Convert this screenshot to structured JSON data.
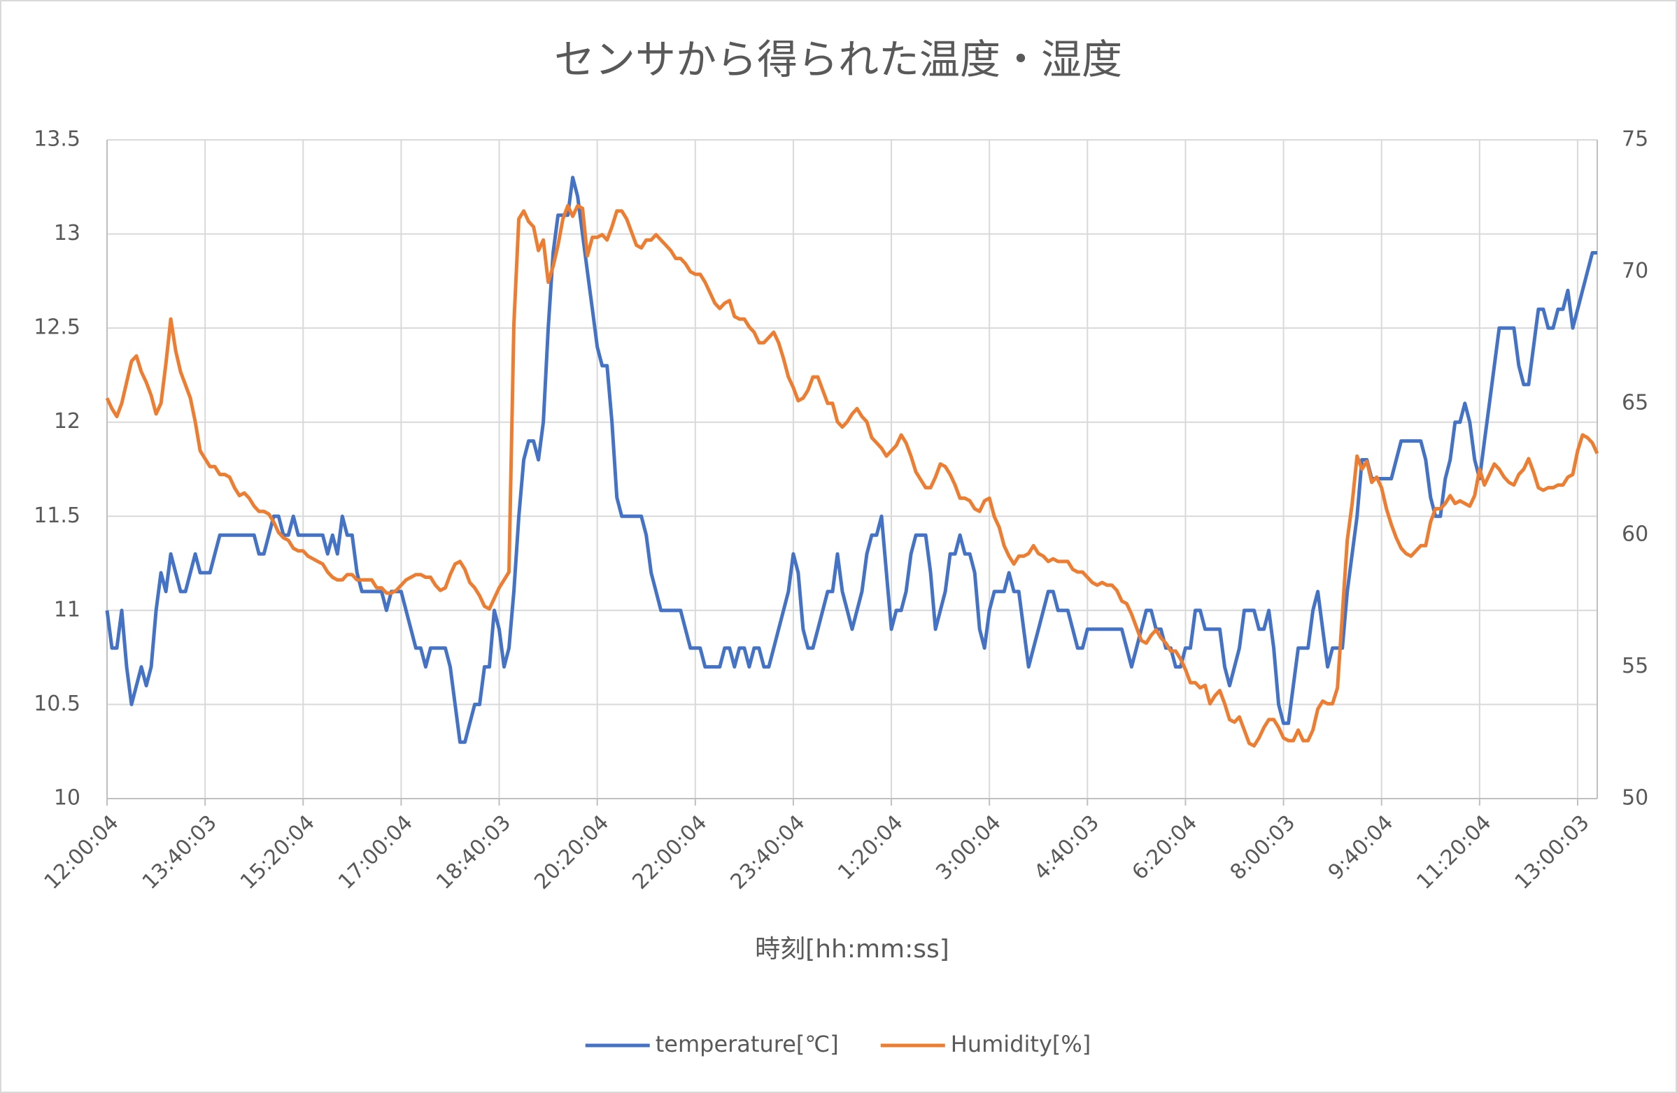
{
  "chart_data": {
    "type": "line",
    "title": "センサから得られた温度・湿度",
    "xlabel": "時刻[hh:mm:ss]",
    "categories": [
      "12:00:04",
      null,
      null,
      null,
      null,
      null,
      null,
      null,
      null,
      null,
      null,
      null,
      null,
      null,
      null,
      null,
      null,
      null,
      null,
      null,
      "13:40:03",
      null,
      null,
      null,
      null,
      null,
      null,
      null,
      null,
      null,
      null,
      null,
      null,
      null,
      null,
      null,
      null,
      null,
      null,
      null,
      "15:20:04",
      null,
      null,
      null,
      null,
      null,
      null,
      null,
      null,
      null,
      null,
      null,
      null,
      null,
      null,
      null,
      null,
      null,
      null,
      null,
      "17:00:04",
      null,
      null,
      null,
      null,
      null,
      null,
      null,
      null,
      null,
      null,
      null,
      null,
      null,
      null,
      null,
      null,
      null,
      null,
      null,
      "18:40:03",
      null,
      null,
      null,
      null,
      null,
      null,
      null,
      null,
      null,
      null,
      null,
      null,
      null,
      null,
      null,
      null,
      null,
      null,
      null,
      "20:20:04",
      null,
      null,
      null,
      null,
      null,
      null,
      null,
      null,
      null,
      null,
      null,
      null,
      null,
      null,
      null,
      null,
      null,
      null,
      null,
      "22:00:04",
      null,
      null,
      null,
      null,
      null,
      null,
      null,
      null,
      null,
      null,
      null,
      null,
      null,
      null,
      null,
      null,
      null,
      null,
      null,
      "23:40:04",
      null,
      null,
      null,
      null,
      null,
      null,
      null,
      null,
      null,
      null,
      null,
      null,
      null,
      null,
      null,
      null,
      null,
      null,
      null,
      "1:20:04",
      null,
      null,
      null,
      null,
      null,
      null,
      null,
      null,
      null,
      null,
      null,
      null,
      null,
      null,
      null,
      null,
      null,
      null,
      null,
      "3:00:04",
      null,
      null,
      null,
      null,
      null,
      null,
      null,
      null,
      null,
      null,
      null,
      null,
      null,
      null,
      null,
      null,
      null,
      null,
      null,
      "4:40:03",
      null,
      null,
      null,
      null,
      null,
      null,
      null,
      null,
      null,
      null,
      null,
      null,
      null,
      null,
      null,
      null,
      null,
      null,
      null,
      "6:20:04",
      null,
      null,
      null,
      null,
      null,
      null,
      null,
      null,
      null,
      null,
      null,
      null,
      null,
      null,
      null,
      null,
      null,
      null,
      null,
      "8:00:03",
      null,
      null,
      null,
      null,
      null,
      null,
      null,
      null,
      null,
      null,
      null,
      null,
      null,
      null,
      null,
      null,
      null,
      null,
      null,
      "9:40:04",
      null,
      null,
      null,
      null,
      null,
      null,
      null,
      null,
      null,
      null,
      null,
      null,
      null,
      null,
      null,
      null,
      null,
      null,
      null,
      "11:20:04",
      null,
      null,
      null,
      null,
      null,
      null,
      null,
      null,
      null,
      null,
      null,
      null,
      null,
      null,
      null,
      null,
      null,
      null,
      null,
      "13:00:03",
      null,
      null,
      null,
      null
    ],
    "series": [
      {
        "name": "temperature[℃]",
        "color": "#4472c4",
        "axis": "y",
        "values": [
          11.0,
          10.8,
          10.8,
          11.0,
          10.7,
          10.5,
          10.6,
          10.7,
          10.6,
          10.7,
          11.0,
          11.2,
          11.1,
          11.3,
          11.2,
          11.1,
          11.1,
          11.2,
          11.3,
          11.2,
          11.2,
          11.2,
          11.3,
          11.4,
          11.4,
          11.4,
          11.4,
          11.4,
          11.4,
          11.4,
          11.4,
          11.3,
          11.3,
          11.4,
          11.5,
          11.5,
          11.4,
          11.4,
          11.5,
          11.4,
          11.4,
          11.4,
          11.4,
          11.4,
          11.4,
          11.3,
          11.4,
          11.3,
          11.5,
          11.4,
          11.4,
          11.2,
          11.1,
          11.1,
          11.1,
          11.1,
          11.1,
          11.0,
          11.1,
          11.1,
          11.1,
          11.0,
          10.9,
          10.8,
          10.8,
          10.7,
          10.8,
          10.8,
          10.8,
          10.8,
          10.7,
          10.5,
          10.3,
          10.3,
          10.4,
          10.5,
          10.5,
          10.7,
          10.7,
          11.0,
          10.9,
          10.7,
          10.8,
          11.1,
          11.5,
          11.8,
          11.9,
          11.9,
          11.8,
          12.0,
          12.5,
          12.9,
          13.1,
          13.1,
          13.1,
          13.3,
          13.2,
          13.0,
          12.8,
          12.6,
          12.4,
          12.3,
          12.3,
          12.0,
          11.6,
          11.5,
          11.5,
          11.5,
          11.5,
          11.5,
          11.4,
          11.2,
          11.1,
          11.0,
          11.0,
          11.0,
          11.0,
          11.0,
          10.9,
          10.8,
          10.8,
          10.8,
          10.7,
          10.7,
          10.7,
          10.7,
          10.8,
          10.8,
          10.7,
          10.8,
          10.8,
          10.7,
          10.8,
          10.8,
          10.7,
          10.7,
          10.8,
          10.9,
          11.0,
          11.1,
          11.3,
          11.2,
          10.9,
          10.8,
          10.8,
          10.9,
          11.0,
          11.1,
          11.1,
          11.3,
          11.1,
          11.0,
          10.9,
          11.0,
          11.1,
          11.3,
          11.4,
          11.4,
          11.5,
          11.2,
          10.9,
          11.0,
          11.0,
          11.1,
          11.3,
          11.4,
          11.4,
          11.4,
          11.2,
          10.9,
          11.0,
          11.1,
          11.3,
          11.3,
          11.4,
          11.3,
          11.3,
          11.2,
          10.9,
          10.8,
          11.0,
          11.1,
          11.1,
          11.1,
          11.2,
          11.1,
          11.1,
          10.9,
          10.7,
          10.8,
          10.9,
          11.0,
          11.1,
          11.1,
          11.0,
          11.0,
          11.0,
          10.9,
          10.8,
          10.8,
          10.9,
          10.9,
          10.9,
          10.9,
          10.9,
          10.9,
          10.9,
          10.9,
          10.8,
          10.7,
          10.8,
          10.9,
          11.0,
          11.0,
          10.9,
          10.9,
          10.8,
          10.8,
          10.7,
          10.7,
          10.8,
          10.8,
          11.0,
          11.0,
          10.9,
          10.9,
          10.9,
          10.9,
          10.7,
          10.6,
          10.7,
          10.8,
          11.0,
          11.0,
          11.0,
          10.9,
          10.9,
          11.0,
          10.8,
          10.5,
          10.4,
          10.4,
          10.6,
          10.8,
          10.8,
          10.8,
          11.0,
          11.1,
          10.9,
          10.7,
          10.8,
          10.8,
          10.8,
          11.1,
          11.3,
          11.5,
          11.8,
          11.8,
          11.7,
          11.7,
          11.7,
          11.7,
          11.7,
          11.8,
          11.9,
          11.9,
          11.9,
          11.9,
          11.9,
          11.8,
          11.6,
          11.5,
          11.5,
          11.7,
          11.8,
          12.0,
          12.0,
          12.1,
          12.0,
          11.8,
          11.7,
          11.9,
          12.1,
          12.3,
          12.5,
          12.5,
          12.5,
          12.5,
          12.3,
          12.2,
          12.2,
          12.4,
          12.6,
          12.6,
          12.5,
          12.5,
          12.6,
          12.6,
          12.7,
          12.5,
          12.6,
          12.7,
          12.8,
          12.9,
          12.9
        ]
      },
      {
        "name": "Humidity[%]",
        "color": "#ed7d31",
        "axis": "y2",
        "values": [
          65.2,
          64.8,
          64.5,
          65.0,
          65.8,
          66.6,
          66.8,
          66.2,
          65.8,
          65.3,
          64.6,
          65.0,
          66.5,
          68.2,
          67.0,
          66.2,
          65.7,
          65.2,
          64.3,
          63.2,
          62.9,
          62.6,
          62.6,
          62.3,
          62.3,
          62.2,
          61.8,
          61.5,
          61.6,
          61.4,
          61.1,
          60.9,
          60.9,
          60.8,
          60.5,
          60.1,
          59.9,
          59.8,
          59.5,
          59.4,
          59.4,
          59.2,
          59.1,
          59.0,
          58.9,
          58.6,
          58.4,
          58.3,
          58.3,
          58.5,
          58.5,
          58.3,
          58.3,
          58.3,
          58.3,
          58.0,
          58.0,
          57.8,
          57.8,
          57.9,
          58.1,
          58.3,
          58.4,
          58.5,
          58.5,
          58.4,
          58.4,
          58.1,
          57.9,
          58.0,
          58.5,
          58.9,
          59.0,
          58.7,
          58.2,
          58.0,
          57.7,
          57.3,
          57.2,
          57.6,
          58.0,
          58.3,
          58.6,
          68.0,
          72.0,
          72.3,
          71.9,
          71.7,
          70.8,
          71.2,
          69.6,
          70.2,
          71.0,
          72.0,
          72.5,
          72.1,
          72.5,
          72.4,
          70.6,
          71.3,
          71.3,
          71.4,
          71.2,
          71.7,
          72.3,
          72.3,
          72.0,
          71.5,
          71.0,
          70.9,
          71.2,
          71.2,
          71.4,
          71.2,
          71.0,
          70.8,
          70.5,
          70.5,
          70.3,
          70.0,
          69.9,
          69.9,
          69.6,
          69.2,
          68.8,
          68.6,
          68.8,
          68.9,
          68.3,
          68.2,
          68.2,
          67.9,
          67.7,
          67.3,
          67.3,
          67.5,
          67.7,
          67.3,
          66.7,
          66.0,
          65.6,
          65.1,
          65.2,
          65.5,
          66.0,
          66.0,
          65.5,
          65.0,
          65.0,
          64.3,
          64.1,
          64.3,
          64.6,
          64.8,
          64.5,
          64.3,
          63.7,
          63.5,
          63.3,
          63.0,
          63.2,
          63.4,
          63.8,
          63.5,
          63.0,
          62.4,
          62.1,
          61.8,
          61.8,
          62.2,
          62.7,
          62.6,
          62.3,
          61.9,
          61.4,
          61.4,
          61.3,
          61.0,
          60.9,
          61.3,
          61.4,
          60.7,
          60.3,
          59.6,
          59.2,
          58.9,
          59.2,
          59.2,
          59.3,
          59.6,
          59.3,
          59.2,
          59.0,
          59.1,
          59.0,
          59.0,
          59.0,
          58.7,
          58.6,
          58.6,
          58.4,
          58.2,
          58.1,
          58.2,
          58.1,
          58.1,
          57.9,
          57.5,
          57.4,
          57.0,
          56.5,
          56.0,
          55.9,
          56.2,
          56.4,
          56.1,
          55.9,
          55.6,
          55.6,
          55.3,
          54.9,
          54.4,
          54.4,
          54.2,
          54.3,
          53.6,
          53.9,
          54.1,
          53.6,
          53.0,
          52.9,
          53.1,
          52.6,
          52.1,
          52.0,
          52.3,
          52.7,
          53.0,
          53.0,
          52.7,
          52.3,
          52.2,
          52.2,
          52.6,
          52.2,
          52.2,
          52.6,
          53.4,
          53.7,
          53.6,
          53.6,
          54.2,
          57.0,
          59.8,
          61.2,
          63.0,
          62.5,
          62.8,
          62.0,
          62.2,
          61.8,
          61.0,
          60.4,
          59.9,
          59.5,
          59.3,
          59.2,
          59.4,
          59.6,
          59.6,
          60.5,
          61.0,
          61.0,
          61.2,
          61.5,
          61.2,
          61.3,
          61.2,
          61.1,
          61.5,
          62.5,
          61.9,
          62.3,
          62.7,
          62.5,
          62.2,
          62.0,
          61.9,
          62.3,
          62.5,
          62.9,
          62.4,
          61.8,
          61.7,
          61.8,
          61.8,
          61.9,
          61.9,
          62.2,
          62.3,
          63.2,
          63.8,
          63.7,
          63.5,
          63.1
        ]
      }
    ],
    "ylim": [
      10,
      13.5
    ],
    "yticks": [
      10,
      10.5,
      11,
      11.5,
      12,
      12.5,
      13,
      13.5
    ],
    "y2lim": [
      50,
      75
    ],
    "y2ticks": [
      50,
      55,
      60,
      65,
      70,
      75
    ],
    "grid": true,
    "legend": "bottom"
  }
}
